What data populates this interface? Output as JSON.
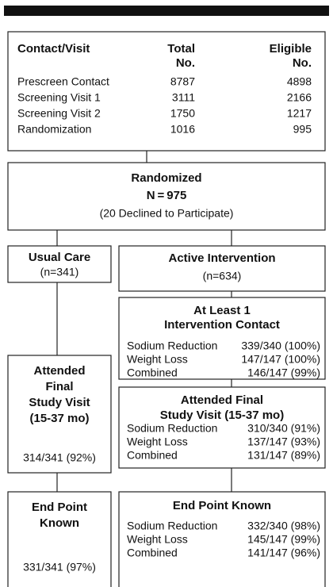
{
  "contact_table": {
    "headers": [
      [
        "Contact/Visit"
      ],
      [
        "Total",
        "No."
      ],
      [
        "Eligible",
        "No."
      ]
    ],
    "rows": [
      [
        "Prescreen Contact",
        "8787",
        "4898"
      ],
      [
        "Screening Visit 1",
        "3111",
        "2166"
      ],
      [
        "Screening Visit 2",
        "1750",
        "1217"
      ],
      [
        "Randomization",
        "1016",
        "995"
      ]
    ]
  },
  "randomized": {
    "title": "Randomized",
    "n": "N = 975",
    "note": "(20 Declined to Participate)"
  },
  "usual_care": {
    "title": "Usual Care",
    "n": "(n=341)"
  },
  "active": {
    "title": "Active Intervention",
    "n": "(n=634)"
  },
  "contact_box": {
    "title": [
      "At Least 1",
      "Intervention Contact"
    ],
    "rows": [
      [
        "Sodium Reduction",
        "339/340 (100%)"
      ],
      [
        "Weight Loss",
        "147/147 (100%)"
      ],
      [
        "Combined",
        "146/147 (99%)"
      ]
    ]
  },
  "attended_usual": {
    "title": [
      "Attended",
      "Final",
      "Study Visit",
      "(15-37 mo)"
    ],
    "result": "314/341 (92%)"
  },
  "attended_active": {
    "title": [
      "Attended Final",
      "Study Visit (15-37 mo)"
    ],
    "rows": [
      [
        "Sodium Reduction",
        "310/340 (91%)"
      ],
      [
        "Weight Loss",
        "137/147 (93%)"
      ],
      [
        "Combined",
        "131/147 (89%)"
      ]
    ]
  },
  "endpoint_usual": {
    "title": [
      "End Point",
      "Known"
    ],
    "result": "331/341 (97%)"
  },
  "endpoint_active": {
    "title": "End Point Known",
    "rows": [
      [
        "Sodium Reduction",
        "332/340 (98%)"
      ],
      [
        "Weight Loss",
        "145/147 (99%)"
      ],
      [
        "Combined",
        "141/147 (96%)"
      ]
    ]
  }
}
